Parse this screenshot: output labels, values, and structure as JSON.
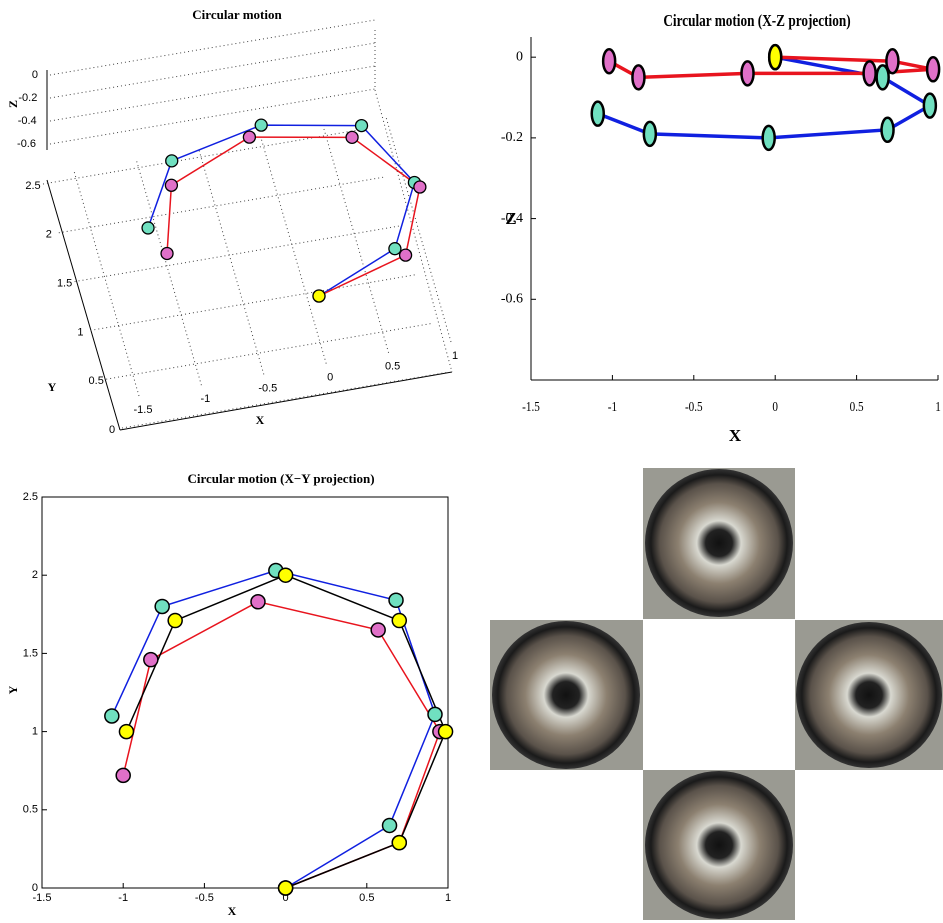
{
  "chart_data": [
    {
      "type": "line3d",
      "title": "Circular motion",
      "xlabel": "X",
      "ylabel": "Y",
      "zlabel": "Z",
      "xticks": [
        -1.5,
        -1,
        -0.5,
        0,
        0.5,
        1
      ],
      "yticks": [
        0,
        0.5,
        1,
        1.5,
        2,
        2.5
      ],
      "zticks": [
        0,
        -0.2,
        -0.4,
        -0.6
      ],
      "first_marker_color": "#ffff00",
      "series": [
        {
          "color": "#1020e0",
          "marker_color": "#70e0c0",
          "x": [
            0,
            0.66,
            0.95,
            0.69,
            -0.04,
            -0.77,
            -1.09
          ],
          "y": [
            0,
            0.4,
            1.11,
            1.84,
            2.03,
            1.8,
            1.1
          ],
          "z": [
            0,
            -0.05,
            -0.12,
            -0.18,
            -0.2,
            -0.19,
            -0.14
          ]
        },
        {
          "color": "#e8141e",
          "marker_color": "#e070c8",
          "x": [
            0,
            0.72,
            0.97,
            0.58,
            -0.17,
            -0.84,
            -1.02
          ],
          "y": [
            0,
            0.29,
            1.0,
            1.65,
            1.83,
            1.46,
            0.72
          ],
          "z": [
            0,
            -0.01,
            -0.03,
            -0.04,
            -0.04,
            -0.05,
            -0.01
          ]
        }
      ]
    },
    {
      "type": "line",
      "title": "Circular motion (X-Z projection)",
      "xlabel": "X",
      "ylabel": "Z",
      "xlim": [
        -1.5,
        1
      ],
      "ylim": [
        -0.8,
        0.05
      ],
      "xticks": [
        -1.5,
        -1,
        -0.5,
        0,
        0.5,
        1
      ],
      "yticks": [
        0,
        -0.2,
        -0.4,
        -0.6
      ],
      "box": false,
      "first_marker_color": "#ffff00",
      "series": [
        {
          "color": "#1020e0",
          "marker_color": "#70e0c0",
          "x": [
            0,
            0.66,
            0.95,
            0.69,
            -0.04,
            -0.77,
            -1.09
          ],
          "values": [
            0,
            -0.05,
            -0.12,
            -0.18,
            -0.2,
            -0.19,
            -0.14
          ]
        },
        {
          "color": "#e8141e",
          "marker_color": "#e070c8",
          "x": [
            0,
            0.72,
            0.97,
            0.58,
            -0.17,
            -0.84,
            -1.02
          ],
          "values": [
            0,
            -0.01,
            -0.03,
            -0.04,
            -0.04,
            -0.05,
            -0.01
          ]
        }
      ]
    },
    {
      "type": "line",
      "title": "Circular motion (X−Y projection)",
      "xlabel": "X",
      "ylabel": "Y",
      "xlim": [
        -1.5,
        1
      ],
      "ylim": [
        0,
        2.5
      ],
      "xticks": [
        -1.5,
        -1,
        -0.5,
        0,
        0.5,
        1
      ],
      "yticks": [
        0,
        0.5,
        1,
        1.5,
        2,
        2.5
      ],
      "box": true,
      "series": [
        {
          "color": "#1020e0",
          "marker_color": "#70e0c0",
          "x": [
            0,
            0.64,
            0.92,
            0.68,
            -0.06,
            -0.76,
            -1.07
          ],
          "values": [
            0,
            0.4,
            1.11,
            1.84,
            2.03,
            1.8,
            1.1
          ]
        },
        {
          "color": "#e8141e",
          "marker_color": "#e070c8",
          "x": [
            0,
            0.7,
            0.95,
            0.57,
            -0.17,
            -0.83,
            -1.0
          ],
          "values": [
            0,
            0.29,
            1.0,
            1.65,
            1.83,
            1.46,
            0.72
          ]
        },
        {
          "color": "#000000",
          "marker_color": "#ffff00",
          "x": [
            0,
            0.7,
            0.985,
            0.7,
            0,
            -0.68,
            -0.98
          ],
          "values": [
            0,
            0.29,
            1.0,
            1.71,
            2.0,
            1.71,
            1.0
          ]
        }
      ]
    }
  ]
}
